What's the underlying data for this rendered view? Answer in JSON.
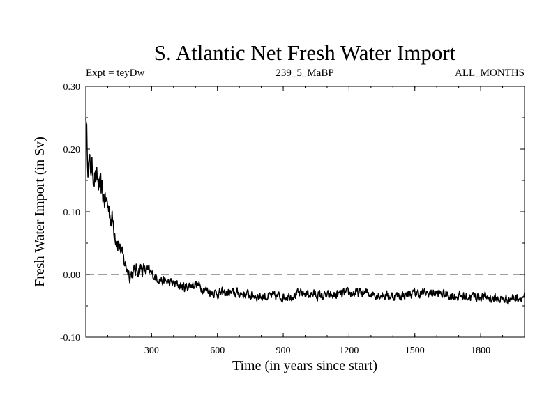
{
  "chart_data": {
    "type": "line",
    "title": "S. Atlantic Net Fresh Water Import",
    "subtitle_left": "Expt = teyDw",
    "subtitle_center": "239_5_MaBP",
    "subtitle_right": "ALL_MONTHS",
    "xlabel": "Time (in years since start)",
    "ylabel": "Fresh Water Import (in Sv)",
    "xlim": [
      0,
      2000
    ],
    "ylim": [
      -0.1,
      0.3
    ],
    "x_ticks": [
      300,
      600,
      900,
      1200,
      1500,
      1800
    ],
    "x_tick_labels": [
      "300",
      "600",
      "900",
      "1200",
      "1500",
      "1800"
    ],
    "y_ticks": [
      -0.1,
      0.0,
      0.1,
      0.2,
      0.3
    ],
    "y_tick_labels": [
      "-0.10",
      "0.00",
      "0.10",
      "0.20",
      "0.30"
    ],
    "reference_line": {
      "y": 0.0,
      "style": "dashed"
    },
    "series": [
      {
        "name": "Net fresh water import",
        "x": [
          0,
          10,
          25,
          50,
          75,
          100,
          125,
          150,
          175,
          200,
          250,
          300,
          350,
          400,
          450,
          500,
          550,
          600,
          700,
          800,
          900,
          1000,
          1100,
          1200,
          1300,
          1400,
          1500,
          1600,
          1700,
          1800,
          1900,
          2000
        ],
        "values": [
          0.25,
          0.18,
          0.17,
          0.15,
          0.13,
          0.11,
          0.08,
          0.05,
          0.02,
          0.0,
          0.01,
          0.0,
          -0.01,
          -0.015,
          -0.02,
          -0.015,
          -0.025,
          -0.03,
          -0.03,
          -0.035,
          -0.035,
          -0.03,
          -0.035,
          -0.03,
          -0.03,
          -0.035,
          -0.03,
          -0.03,
          -0.035,
          -0.035,
          -0.04,
          -0.035
        ],
        "noise_amplitude": 0.012
      }
    ]
  }
}
